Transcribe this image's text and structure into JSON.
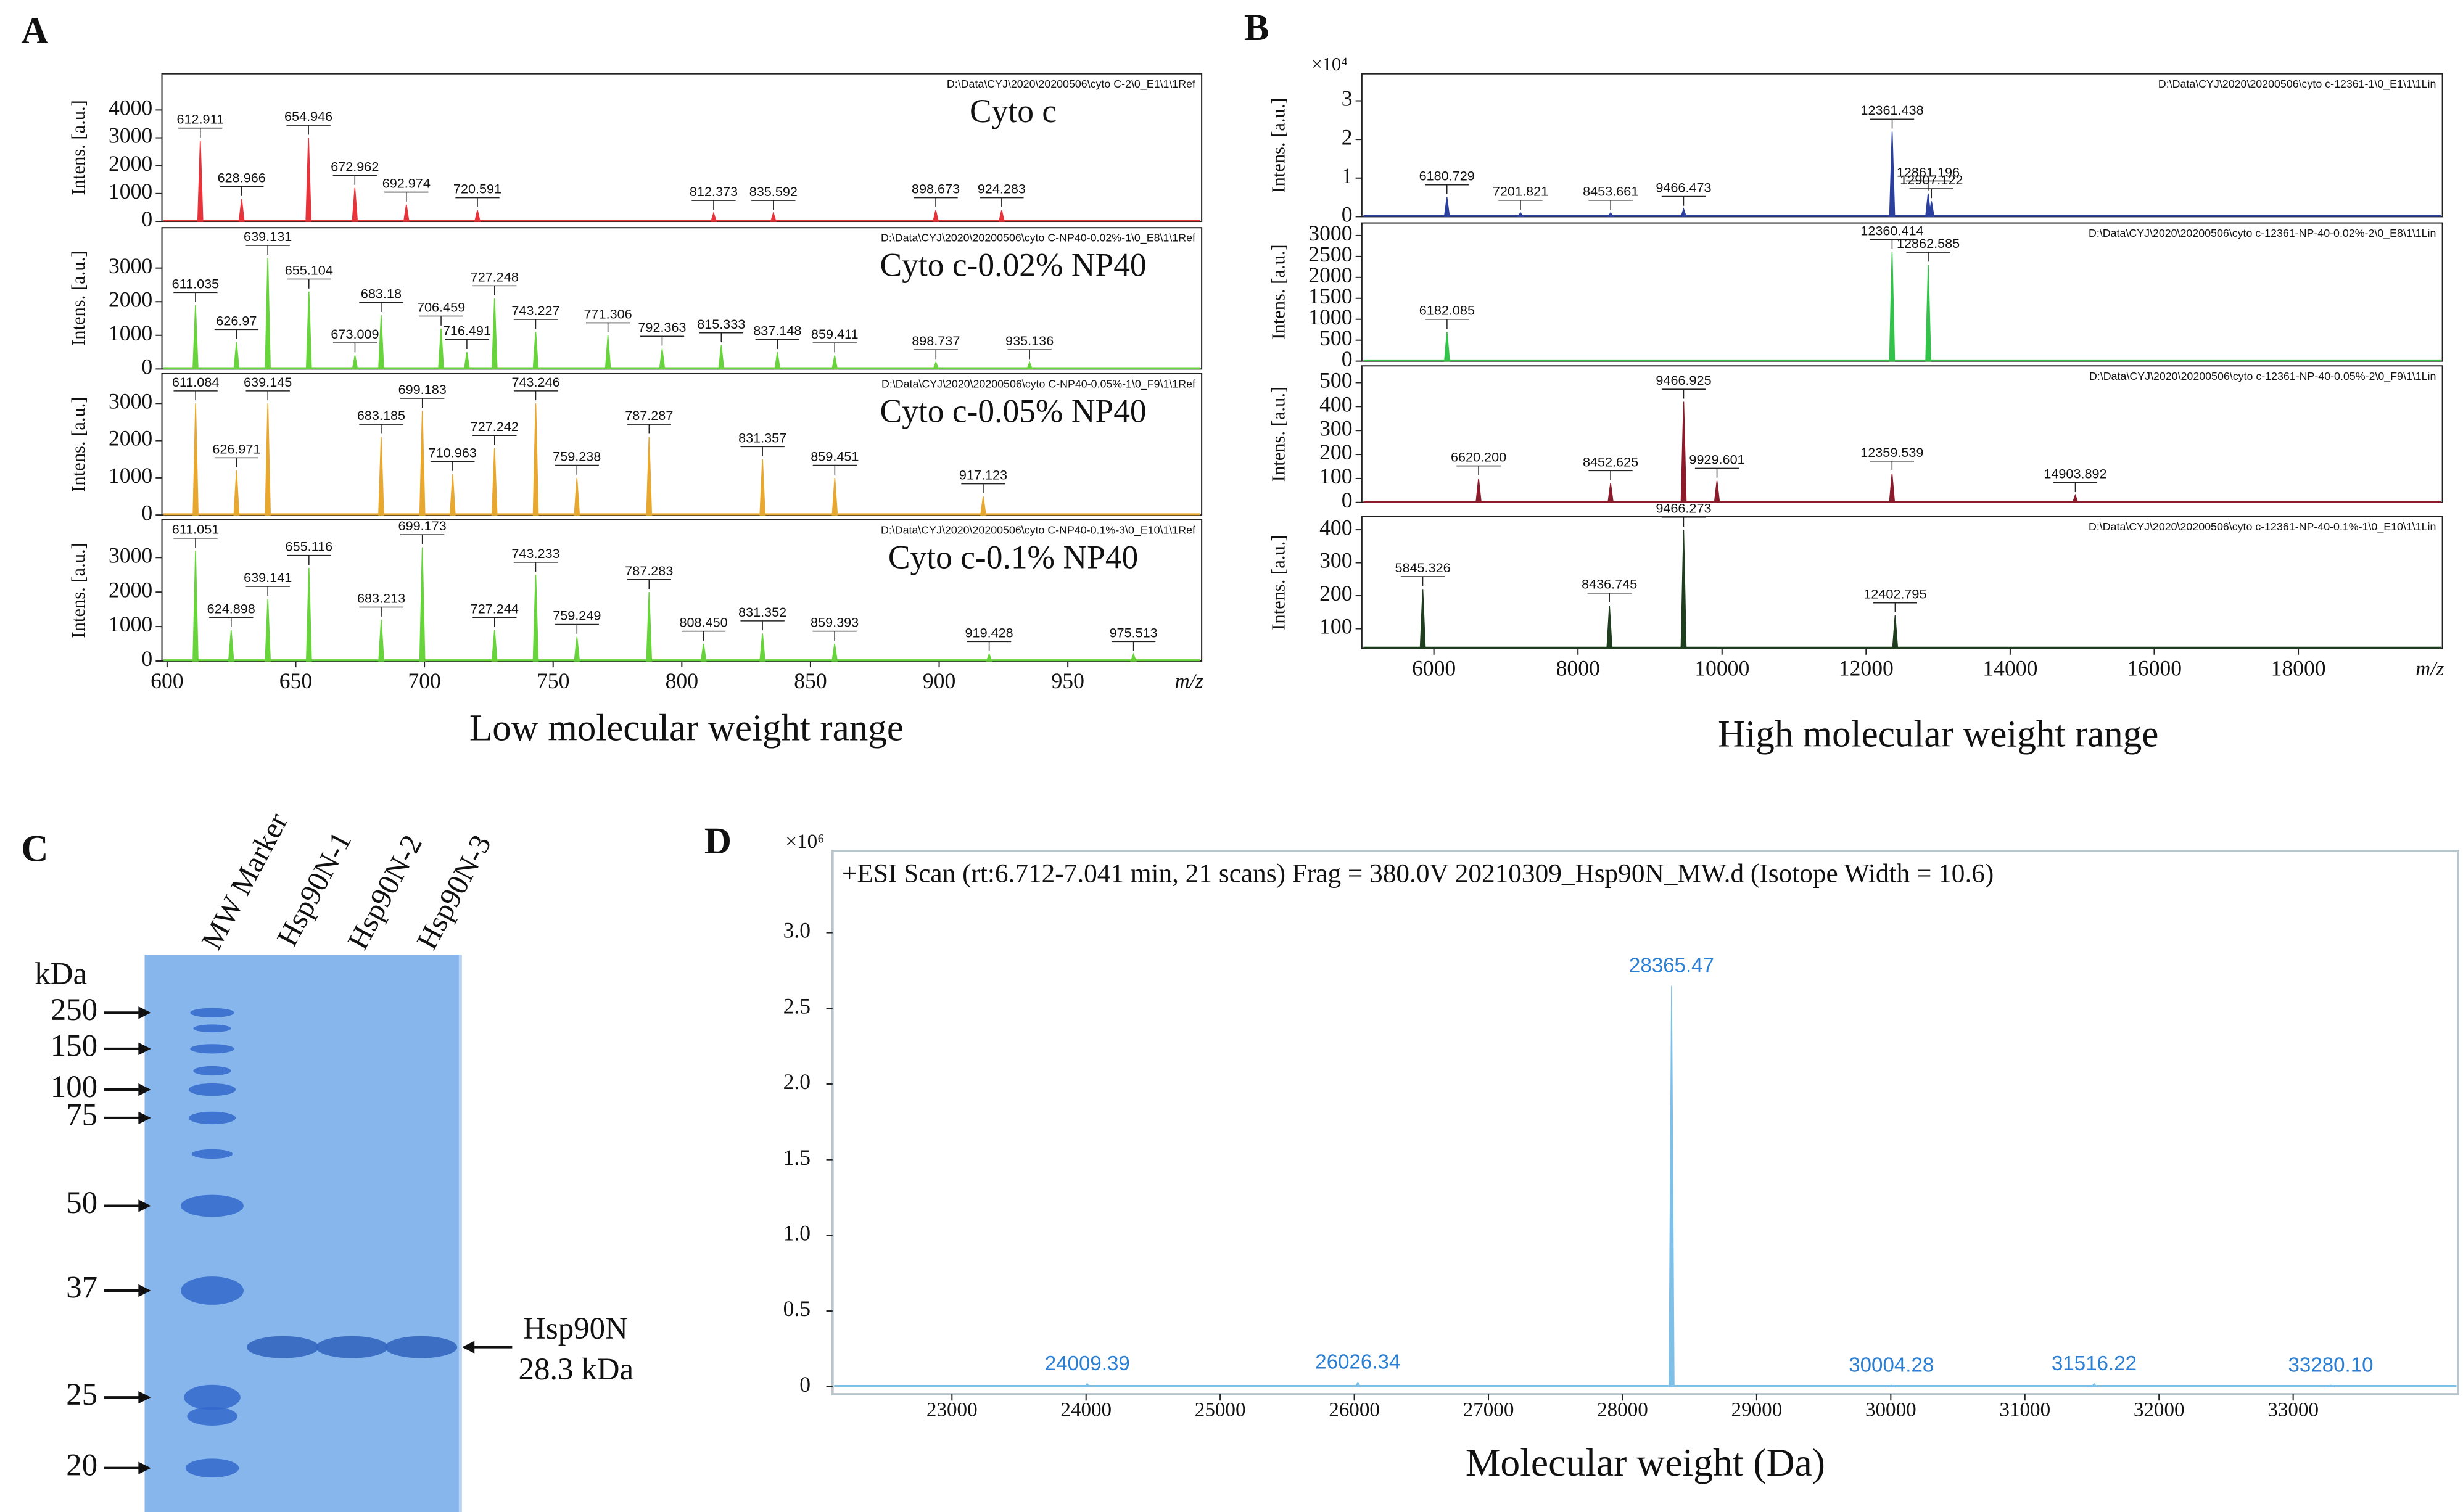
{
  "panel_labels": [
    "A",
    "B",
    "C",
    "D"
  ],
  "captions": [
    "Low molecular weight range",
    "High molecular weight range"
  ],
  "chart_data": [
    {
      "type": "spectrum",
      "title": "Cyto c",
      "file": "D:\\Data\\CYJ\\2020\\20200506\\cyto C-2\\0_E1\\1\\1Ref",
      "ylabel": "Intens. [a.u.]",
      "xlim": [
        598,
        1002
      ],
      "ylim": [
        0,
        5300
      ],
      "yticks": [
        0,
        1000,
        2000,
        3000,
        4000
      ],
      "color": "#e8333a",
      "x": [
        612.911,
        628.966,
        654.946,
        672.962,
        692.974,
        720.591,
        812.373,
        835.592,
        898.673,
        924.283
      ],
      "values": [
        2900,
        800,
        3000,
        1200,
        600,
        400,
        300,
        300,
        400,
        400
      ]
    },
    {
      "type": "spectrum",
      "title": "Cyto c-0.02% NP40",
      "file": "D:\\Data\\CYJ\\2020\\20200506\\cyto C-NP40-0.02%-1\\0_E8\\1\\1Ref",
      "ylabel": "Intens. [a.u.]",
      "xlim": [
        598,
        1002
      ],
      "ylim": [
        0,
        4200
      ],
      "yticks": [
        0,
        1000,
        2000,
        3000
      ],
      "color": "#66d43a",
      "x": [
        611.035,
        626.97,
        639.131,
        655.104,
        673.009,
        683.18,
        706.459,
        716.491,
        727.248,
        743.227,
        771.306,
        792.363,
        815.333,
        837.148,
        859.411,
        898.737,
        935.136
      ],
      "values": [
        1900,
        800,
        3300,
        2300,
        400,
        1600,
        1200,
        500,
        2100,
        1100,
        1000,
        600,
        700,
        500,
        400,
        200,
        200
      ]
    },
    {
      "type": "spectrum",
      "title": "Cyto c-0.05% NP40",
      "file": "D:\\Data\\CYJ\\2020\\20200506\\cyto C-NP40-0.05%-1\\0_F9\\1\\1Ref",
      "ylabel": "Intens. [a.u.]",
      "xlim": [
        598,
        1002
      ],
      "ylim": [
        0,
        3800
      ],
      "yticks": [
        0,
        1000,
        2000,
        3000
      ],
      "color": "#e8a830",
      "x": [
        611.084,
        626.971,
        639.145,
        683.185,
        699.183,
        710.963,
        727.242,
        743.246,
        759.238,
        787.287,
        831.357,
        859.451,
        917.123
      ],
      "values": [
        3000,
        1200,
        3000,
        2100,
        2800,
        1100,
        1800,
        3000,
        1000,
        2100,
        1500,
        1000,
        500
      ]
    },
    {
      "type": "spectrum",
      "title": "Cyto c-0.1% NP40",
      "file": "D:\\Data\\CYJ\\2020\\20200506\\cyto C-NP40-0.1%-3\\0_E10\\1\\1Ref",
      "ylabel": "Intens. [a.u.]",
      "xlim": [
        598,
        1002
      ],
      "ylim": [
        0,
        4100
      ],
      "yticks": [
        0,
        1000,
        2000,
        3000
      ],
      "color": "#66d43a",
      "x": [
        611.051,
        624.898,
        639.141,
        655.116,
        683.213,
        699.173,
        727.244,
        743.233,
        759.249,
        787.283,
        808.45,
        831.352,
        859.393,
        919.428,
        975.513
      ],
      "x_labels": [
        "611.051",
        "624.898",
        "639.141",
        "655.116",
        "683.213",
        "699.173",
        "727.244",
        "743.233",
        "759.249",
        "787.283",
        "808.450",
        "831.352",
        "859.393",
        "919.428",
        "975.513"
      ],
      "values": [
        3200,
        900,
        1800,
        2700,
        1200,
        3300,
        900,
        2500,
        700,
        2000,
        500,
        800,
        500,
        200,
        200
      ],
      "xticks": [
        600,
        650,
        700,
        750,
        800,
        850,
        900,
        950
      ],
      "xlabel": "m/z"
    },
    {
      "type": "spectrum",
      "file": "D:\\Data\\CYJ\\2020\\20200506\\cyto c-12361-1\\0_E1\\1\\1Lin",
      "ylabel": "Intens. [a.u.]",
      "y_multiplier": "×10⁴",
      "xlim": [
        5000,
        20000
      ],
      "ylim": [
        0,
        3.7
      ],
      "yticks": [
        0,
        1,
        2,
        3
      ],
      "color": "#2b3f9e",
      "x": [
        6180.729,
        7201.821,
        8453.661,
        9466.473,
        12361.438,
        12861.196,
        12907.122
      ],
      "values": [
        0.5,
        0.1,
        0.1,
        0.2,
        2.2,
        0.6,
        0.4
      ]
    },
    {
      "type": "spectrum",
      "file": "D:\\Data\\CYJ\\2020\\20200506\\cyto c-12361-NP-40-0.02%-2\\0_E8\\1\\1Lin",
      "ylabel": "Intens. [a.u.]",
      "xlim": [
        5000,
        20000
      ],
      "ylim": [
        0,
        3300
      ],
      "yticks": [
        0,
        500,
        1000,
        1500,
        2000,
        2500,
        3000
      ],
      "color": "#33c24a",
      "x": [
        6182.085,
        12360.414,
        12862.585
      ],
      "values": [
        700,
        2600,
        2300
      ]
    },
    {
      "type": "spectrum",
      "file": "D:\\Data\\CYJ\\2020\\20200506\\cyto c-12361-NP-40-0.05%-2\\0_F9\\1\\1Lin",
      "ylabel": "Intens. [a.u.]",
      "xlim": [
        5000,
        20000
      ],
      "ylim": [
        0,
        570
      ],
      "yticks": [
        0,
        100,
        200,
        300,
        400,
        500
      ],
      "color": "#8b1a2a",
      "x": [
        6620.2,
        8452.625,
        9466.925,
        9929.601,
        12359.539,
        14903.892
      ],
      "x_labels": [
        "6620.200",
        "8452.625",
        "9466.925",
        "9929.601",
        "12359.539",
        "14903.892"
      ],
      "values": [
        100,
        80,
        420,
        90,
        120,
        30
      ]
    },
    {
      "type": "spectrum",
      "file": "D:\\Data\\CYJ\\2020\\20200506\\cyto c-12361-NP-40-0.1%-1\\0_E10\\1\\1Lin",
      "ylabel": "Intens. [a.u.]",
      "xlim": [
        5000,
        20000
      ],
      "ylim": [
        40,
        440
      ],
      "yticks": [
        100,
        200,
        300,
        400
      ],
      "color": "#1f3d1f",
      "x": [
        5845.326,
        8436.745,
        9466.273,
        12402.795
      ],
      "values": [
        220,
        170,
        400,
        140
      ],
      "xticks": [
        6000,
        8000,
        10000,
        12000,
        14000,
        16000,
        18000
      ],
      "xlabel": "m/z"
    },
    {
      "type": "spectrum",
      "title": "+ESI Scan (rt:6.712-7.041 min, 21 scans) Frag = 380.0V 20210309_Hsp90N_MW.d (Isotope Width = 10.6)",
      "y_multiplier": "×10⁶",
      "xlim": [
        22110,
        34230
      ],
      "ylim": [
        -0.05,
        3.54
      ],
      "yticks": [
        0,
        0.5,
        {
          "value": 1,
          "label": "1.0"
        },
        1.5,
        {
          "value": 2,
          "label": "2.0"
        },
        2.5,
        {
          "value": 3,
          "label": "3.0"
        }
      ],
      "xticks": [
        23000,
        24000,
        25000,
        26000,
        27000,
        28000,
        29000,
        30000,
        31000,
        32000,
        33000
      ],
      "xlabel": "Molecular weight (Da)",
      "color": "#7fc0e8",
      "x": [
        24009.39,
        26026.34,
        28365.47,
        30004.28,
        31516.22,
        33280.1
      ],
      "x_labels": [
        "24009.39",
        "26026.34",
        "28365.47",
        "30004.28",
        "31516.22",
        "33280.10"
      ],
      "values": [
        0.02,
        0.03,
        2.65,
        0.01,
        0.02,
        0.01
      ]
    }
  ],
  "gel": {
    "lane_labels": [
      "MW Marker",
      "Hsp90N-1",
      "Hsp90N-2",
      "Hsp90N-3"
    ],
    "unit": "kDa",
    "markers": [
      250,
      150,
      100,
      75,
      50,
      37,
      25,
      20
    ],
    "band_label": [
      "Hsp90N",
      "28.3 kDa"
    ]
  }
}
